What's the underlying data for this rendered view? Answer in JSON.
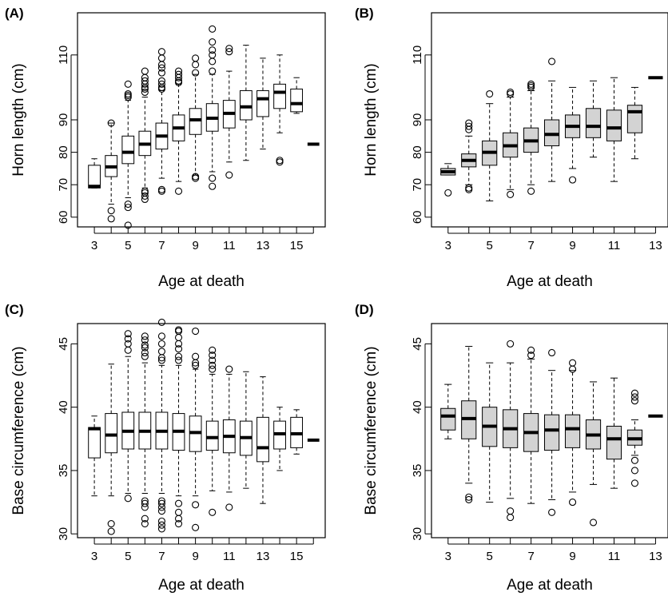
{
  "colors": {
    "box_white": "#ffffff",
    "box_grey": "#d3d3d3",
    "ink": "#000000"
  },
  "chart_data": [
    {
      "type": "boxplot",
      "panel_label": "(A)",
      "xlabel": "Age at death",
      "ylabel": "Horn length (cm)",
      "ylim": [
        57,
        123
      ],
      "yticks": [
        60,
        70,
        80,
        90,
        110
      ],
      "xlim": [
        2,
        16.7
      ],
      "xticks": [
        3,
        5,
        7,
        9,
        11,
        13,
        15
      ],
      "box_fill": "white",
      "boxes": [
        {
          "x": 3,
          "whislo": 69,
          "q1": 69,
          "med": 69.5,
          "q3": 76,
          "whishi": 78,
          "out": []
        },
        {
          "x": 4,
          "whislo": 64,
          "q1": 72.5,
          "med": 75.5,
          "q3": 79,
          "whishi": 89,
          "out": [
            59.5,
            62,
            89
          ]
        },
        {
          "x": 5,
          "whislo": 66,
          "q1": 76.5,
          "med": 80,
          "q3": 85,
          "whishi": 96,
          "out": [
            57.5,
            63,
            64,
            97,
            97.5,
            98,
            101
          ]
        },
        {
          "x": 6,
          "whislo": 69,
          "q1": 79,
          "med": 82.5,
          "q3": 86.5,
          "whishi": 97,
          "out": [
            65.5,
            66.5,
            67.5,
            68,
            98.5,
            99.5,
            100,
            101,
            102,
            103,
            105
          ]
        },
        {
          "x": 7,
          "whislo": 72,
          "q1": 81,
          "med": 85,
          "q3": 89,
          "whishi": 99,
          "out": [
            68,
            68.5,
            99.5,
            100,
            101,
            102,
            104.5,
            106,
            107,
            109,
            111
          ]
        },
        {
          "x": 8,
          "whislo": 71,
          "q1": 83.5,
          "med": 87.5,
          "q3": 91.5,
          "whishi": 101,
          "out": [
            68,
            101.5,
            102,
            103,
            104,
            105
          ]
        },
        {
          "x": 9,
          "whislo": 73,
          "q1": 85.5,
          "med": 90,
          "q3": 93.5,
          "whishi": 104,
          "out": [
            72,
            72.5,
            104.5,
            107,
            109
          ]
        },
        {
          "x": 10,
          "whislo": 74,
          "q1": 86.5,
          "med": 90.5,
          "q3": 95,
          "whishi": 104,
          "out": [
            69.5,
            72,
            105,
            108,
            110,
            111.5,
            114,
            118
          ]
        },
        {
          "x": 11,
          "whislo": 77,
          "q1": 87.5,
          "med": 92,
          "q3": 96,
          "whishi": 105,
          "out": [
            73,
            111,
            112
          ]
        },
        {
          "x": 12,
          "whislo": 77.5,
          "q1": 90,
          "med": 94,
          "q3": 99,
          "whishi": 113
        },
        {
          "x": 13,
          "whislo": 81,
          "q1": 91,
          "med": 96.5,
          "q3": 99,
          "whishi": 109,
          "out": []
        },
        {
          "x": 14,
          "whislo": 86,
          "q1": 93.5,
          "med": 98.5,
          "q3": 101,
          "whishi": 110,
          "out": [
            77,
            77.5
          ]
        },
        {
          "x": 15,
          "whislo": 92,
          "q1": 92.5,
          "med": 95,
          "q3": 99.5,
          "whishi": 103,
          "out": []
        },
        {
          "x": 16,
          "whislo": 82.5,
          "q1": 82.5,
          "med": 82.5,
          "q3": 82.5,
          "whishi": 82.5,
          "out": []
        }
      ]
    },
    {
      "type": "boxplot",
      "panel_label": "(B)",
      "xlabel": "Age at death",
      "ylabel": "Horn length (cm)",
      "ylim": [
        57,
        123
      ],
      "yticks": [
        60,
        70,
        80,
        90,
        110
      ],
      "xlim": [
        2.2,
        13.6
      ],
      "xticks": [
        3,
        5,
        7,
        9,
        11,
        13
      ],
      "box_fill": "grey",
      "boxes": [
        {
          "x": 3,
          "whislo": 73,
          "q1": 73,
          "med": 74,
          "q3": 75,
          "whishi": 76.5,
          "out": [
            67.5
          ]
        },
        {
          "x": 4,
          "whislo": 70,
          "q1": 75.5,
          "med": 77.5,
          "q3": 79.5,
          "whishi": 85,
          "out": [
            68.5,
            69,
            87,
            88,
            89
          ]
        },
        {
          "x": 5,
          "whislo": 65,
          "q1": 76,
          "med": 80,
          "q3": 83.5,
          "whishi": 95,
          "out": [
            98
          ]
        },
        {
          "x": 6,
          "whislo": 68.5,
          "q1": 78.5,
          "med": 82,
          "q3": 86,
          "whishi": 97,
          "out": [
            67,
            98,
            98.5
          ]
        },
        {
          "x": 7,
          "whislo": 70,
          "q1": 80,
          "med": 83.5,
          "q3": 87.5,
          "whishi": 99,
          "out": [
            68,
            100,
            100.5,
            101
          ]
        },
        {
          "x": 8,
          "whislo": 71,
          "q1": 82,
          "med": 85.5,
          "q3": 90,
          "whishi": 102,
          "out": [
            108
          ]
        },
        {
          "x": 9,
          "whislo": 75,
          "q1": 84.5,
          "med": 88,
          "q3": 91.5,
          "whishi": 100,
          "out": [
            71.5
          ]
        },
        {
          "x": 10,
          "whislo": 78.5,
          "q1": 84.5,
          "med": 88,
          "q3": 93.5,
          "whishi": 102,
          "out": []
        },
        {
          "x": 11,
          "whislo": 71,
          "q1": 83.5,
          "med": 87.5,
          "q3": 93,
          "whishi": 103,
          "out": []
        },
        {
          "x": 12,
          "whislo": 78,
          "q1": 86,
          "med": 92.5,
          "q3": 94.5,
          "whishi": 100,
          "out": []
        },
        {
          "x": 13,
          "whislo": 103,
          "q1": 103,
          "med": 103,
          "q3": 103,
          "whishi": 103,
          "out": []
        }
      ]
    },
    {
      "type": "boxplot",
      "panel_label": "(C)",
      "xlabel": "Age at death",
      "ylabel": "Base circumference (cm)",
      "ylim": [
        29.7,
        46.6
      ],
      "yticks": [
        30,
        35,
        40,
        45
      ],
      "xlim": [
        2,
        16.7
      ],
      "xticks": [
        3,
        5,
        7,
        9,
        11,
        13,
        15
      ],
      "box_fill": "white",
      "boxes": [
        {
          "x": 3,
          "whislo": 33,
          "q1": 36,
          "med": 38.3,
          "q3": 38.4,
          "whishi": 39.3,
          "out": []
        },
        {
          "x": 4,
          "whislo": 33,
          "q1": 36.4,
          "med": 37.8,
          "q3": 39.5,
          "whishi": 43.4,
          "out": [
            30.2,
            30.8
          ]
        },
        {
          "x": 5,
          "whislo": 33.2,
          "q1": 36.7,
          "med": 38.1,
          "q3": 39.6,
          "whishi": 44,
          "out": [
            32.8,
            44.5,
            45,
            45.4,
            45.8
          ]
        },
        {
          "x": 6,
          "whislo": 33.2,
          "q1": 36.7,
          "med": 38.1,
          "q3": 39.6,
          "whishi": 43.5,
          "out": [
            30.8,
            31.2,
            32.1,
            32.4,
            32.6,
            44,
            44.3,
            44.7,
            44.9,
            45.3,
            45.6
          ]
        },
        {
          "x": 7,
          "whislo": 33.2,
          "q1": 36.7,
          "med": 38.1,
          "q3": 39.6,
          "whishi": 43.3,
          "out": [
            30.4,
            30.7,
            31,
            31.8,
            32.1,
            32.4,
            32.6,
            43.7,
            43.9,
            44.4,
            45,
            45.6,
            46.7
          ]
        },
        {
          "x": 8,
          "whislo": 33,
          "q1": 36.6,
          "med": 38.1,
          "q3": 39.5,
          "whishi": 43.3,
          "out": [
            30.8,
            31.2,
            31.7,
            32.4,
            43.7,
            44,
            44.6,
            45,
            45.5,
            46,
            46.1
          ]
        },
        {
          "x": 9,
          "whislo": 33,
          "q1": 36.5,
          "med": 38,
          "q3": 39.3,
          "whishi": 43,
          "out": [
            30.5,
            32.3,
            43.3,
            43.5,
            44,
            46
          ]
        },
        {
          "x": 10,
          "whislo": 33.4,
          "q1": 36.6,
          "med": 37.6,
          "q3": 38.9,
          "whishi": 42.6,
          "out": [
            31.7,
            43,
            43.3,
            43.7,
            44.1,
            44.5
          ]
        },
        {
          "x": 11,
          "whislo": 33.3,
          "q1": 36.4,
          "med": 37.7,
          "q3": 39,
          "whishi": 42.6,
          "out": [
            32.1,
            43
          ]
        },
        {
          "x": 12,
          "whislo": 33.6,
          "q1": 36.2,
          "med": 37.6,
          "q3": 38.9,
          "whishi": 42.8,
          "out": []
        },
        {
          "x": 13,
          "whislo": 32.4,
          "q1": 35.7,
          "med": 36.8,
          "q3": 39.2,
          "whishi": 42.4,
          "out": []
        },
        {
          "x": 14,
          "whislo": 35,
          "q1": 36.7,
          "med": 37.9,
          "q3": 38.9,
          "whishi": 40,
          "out": []
        },
        {
          "x": 15,
          "whislo": 36.3,
          "q1": 36.8,
          "med": 37.9,
          "q3": 39.2,
          "whishi": 39.8,
          "out": []
        },
        {
          "x": 16,
          "whislo": 37.4,
          "q1": 37.4,
          "med": 37.4,
          "q3": 37.4,
          "whishi": 37.4,
          "out": []
        }
      ]
    },
    {
      "type": "boxplot",
      "panel_label": "(D)",
      "xlabel": "Age at death",
      "ylabel": "Base circumference (cm)",
      "ylim": [
        29.7,
        46.6
      ],
      "yticks": [
        30,
        35,
        40,
        45
      ],
      "xlim": [
        2.2,
        13.6
      ],
      "xticks": [
        3,
        5,
        7,
        9,
        11,
        13
      ],
      "box_fill": "grey",
      "boxes": [
        {
          "x": 3,
          "whislo": 37.5,
          "q1": 38.2,
          "med": 39.3,
          "q3": 39.9,
          "whishi": 41.8,
          "out": []
        },
        {
          "x": 4,
          "whislo": 34,
          "q1": 37.5,
          "med": 39.1,
          "q3": 40.5,
          "whishi": 44.8,
          "out": [
            32.7,
            32.9
          ]
        },
        {
          "x": 5,
          "whislo": 32.5,
          "q1": 36.9,
          "med": 38.5,
          "q3": 40,
          "whishi": 43.5,
          "out": []
        },
        {
          "x": 6,
          "whislo": 32.8,
          "q1": 36.8,
          "med": 38.3,
          "q3": 39.8,
          "whishi": 43.5,
          "out": [
            31.3,
            31.8,
            45
          ]
        },
        {
          "x": 7,
          "whislo": 32.4,
          "q1": 36.5,
          "med": 38,
          "q3": 39.5,
          "whishi": 43.8,
          "out": [
            44.1,
            44.5
          ]
        },
        {
          "x": 8,
          "whislo": 32.7,
          "q1": 36.6,
          "med": 38.2,
          "q3": 39.4,
          "whishi": 42.9,
          "out": [
            31.7,
            44.3
          ]
        },
        {
          "x": 9,
          "whislo": 33.3,
          "q1": 36.8,
          "med": 38.3,
          "q3": 39.4,
          "whishi": 42.9,
          "out": [
            32.5,
            43,
            43.5
          ]
        },
        {
          "x": 10,
          "whislo": 33.9,
          "q1": 36.7,
          "med": 37.8,
          "q3": 39,
          "whishi": 42,
          "out": [
            30.9
          ]
        },
        {
          "x": 11,
          "whislo": 33.6,
          "q1": 35.9,
          "med": 37.5,
          "q3": 38.5,
          "whishi": 42.3,
          "out": []
        },
        {
          "x": 12,
          "whislo": 36.2,
          "q1": 37,
          "med": 37.5,
          "q3": 38.2,
          "whishi": 39,
          "out": [
            34,
            35,
            35.8,
            40.5,
            40.8,
            41.1
          ]
        },
        {
          "x": 13,
          "whislo": 39.3,
          "q1": 39.3,
          "med": 39.3,
          "q3": 39.3,
          "whishi": 39.3,
          "out": []
        }
      ]
    }
  ]
}
